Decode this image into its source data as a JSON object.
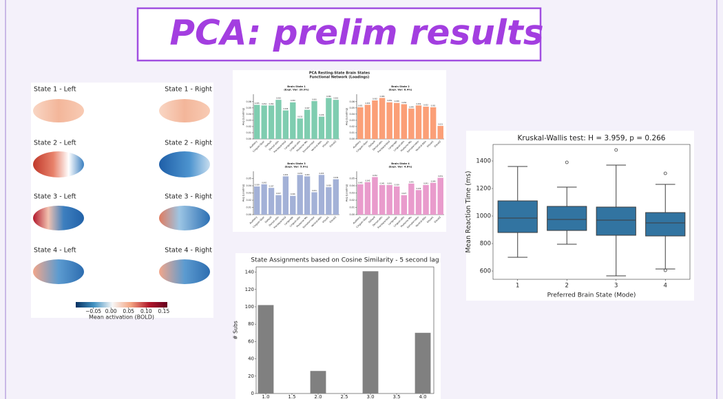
{
  "header": {
    "title": "PCA: prelim results"
  },
  "brain_panel": {
    "labels": [
      "State 1 - Left",
      "State 1 - Right",
      "State 2 - Left",
      "State 2 - Right",
      "State 3 - Left",
      "State 3 - Right",
      "State 4 - Left",
      "State 4 - Right"
    ],
    "colorbar": {
      "label": "Mean activation (BOLD)",
      "lim": [
        -0.1,
        0.16
      ],
      "ticks": [
        {
          "value": -0.05,
          "label": "−0.05"
        },
        {
          "value": 0,
          "label": "0.00"
        },
        {
          "value": 0.05,
          "label": "0.05"
        },
        {
          "value": 0.1,
          "label": "0.10"
        },
        {
          "value": 0.15,
          "label": "0.15"
        }
      ],
      "colors": [
        "#053061",
        "#4393c3",
        "#f7f7f7",
        "#f4a582",
        "#b2182b",
        "#67001f"
      ]
    }
  },
  "pca_title": [
    "PCA Resting-State Brain States",
    "Functional Network (Loadings)"
  ],
  "chart_data": [
    {
      "type": "bar",
      "title": "Brain State 1",
      "subtitle": "(Expl. Var: 20.9%)",
      "ylabel": "Avg |Loading|",
      "color": "#7fcdb0",
      "categories": [
        "Auditory",
        "Cingulo-Oper",
        "Default",
        "Dorsal-attn",
        "Frontoparietal",
        "Language",
        "Lingual-attn",
        "Posterior-Mu",
        "Somatomotor",
        "Ventral-Attn",
        "Visual1",
        "Visual2"
      ],
      "values": [
        0.055,
        0.054,
        0.054,
        0.063,
        0.046,
        0.059,
        0.033,
        0.047,
        0.061,
        0.036,
        0.066,
        0.063
      ],
      "ylim": [
        0,
        0.072
      ],
      "yticks": [
        {
          "value": 0,
          "label": "0.00"
        },
        0.01,
        0.02,
        0.03,
        0.04,
        0.05,
        0.06
      ]
    },
    {
      "type": "bar",
      "title": "Brain State 2",
      "subtitle": "(Expl. Var: 8.4%)",
      "ylabel": "Avg |Loading|",
      "color": "#fb9f77",
      "categories": [
        "Auditory",
        "Cingulo-Oper",
        "Default",
        "Dorsal-attn",
        "Frontoparietal",
        "Language",
        "Lingual-attn",
        "Posterior-Mu",
        "Somatomotor",
        "Ventral-Attn",
        "Visual1",
        "Visual2"
      ],
      "values": [
        0.051,
        0.055,
        0.062,
        0.066,
        0.059,
        0.058,
        0.056,
        0.049,
        0.054,
        0.052,
        0.051,
        0.021
      ],
      "ylim": [
        0,
        0.072
      ],
      "yticks": [
        {
          "value": 0,
          "label": "0.00"
        },
        0.01,
        0.02,
        0.03,
        0.04,
        0.05,
        0.06
      ]
    },
    {
      "type": "bar",
      "title": "Brain State 3",
      "subtitle": "(Expl. Var: 5.0%)",
      "ylabel": "Avg |Loading|",
      "color": "#a3b1d7",
      "categories": [
        "Auditory",
        "Cingulo-Oper",
        "Default",
        "Dorsal-attn",
        "Frontoparietal",
        "Language",
        "Lingual-attn",
        "Posterior-Mu",
        "Somatomotor",
        "Ventral-Attn",
        "Visual1",
        "Visual2"
      ],
      "values": [
        0.039,
        0.042,
        0.037,
        0.027,
        0.053,
        0.026,
        0.055,
        0.053,
        0.031,
        0.055,
        0.038,
        0.049
      ],
      "ylim": [
        0,
        0.06
      ],
      "yticks": [
        {
          "value": 0,
          "label": "0.00"
        },
        0.01,
        0.02,
        0.03,
        0.04,
        0.05
      ]
    },
    {
      "type": "bar",
      "title": "Brain State 4",
      "subtitle": "(Expl. Var: 4.6%)",
      "ylabel": "Avg |Loading|",
      "color": "#e99bcc",
      "categories": [
        "Auditory",
        "Cingulo-Oper",
        "Default",
        "Dorsal-attn",
        "Frontoparietal",
        "Language",
        "Lingual-attn",
        "Posterior-Mu",
        "Somatomotor",
        "Ventral-Attn",
        "Visual1",
        "Visual2"
      ],
      "values": [
        0.042,
        0.045,
        0.052,
        0.041,
        0.041,
        0.039,
        0.027,
        0.043,
        0.034,
        0.041,
        0.044,
        0.051
      ],
      "ylim": [
        0,
        0.06
      ],
      "yticks": [
        {
          "value": 0,
          "label": "0.00"
        },
        0.01,
        0.02,
        0.03,
        0.04,
        0.05
      ]
    },
    {
      "type": "histogram",
      "title": "State Assignments based on Cosine Similarity - 5 second lag",
      "ylabel": "# Subs",
      "color": "#808080",
      "x": [
        1,
        2,
        3,
        4
      ],
      "values": [
        102,
        26,
        141,
        70
      ],
      "xlim": [
        0.816,
        4.21
      ],
      "xticks": [
        {
          "value": 1,
          "label": "1.0"
        },
        1.5,
        {
          "value": 2,
          "label": "2.0"
        },
        2.5,
        {
          "value": 3,
          "label": "3.0"
        },
        3.5,
        {
          "value": 4,
          "label": "4.0"
        }
      ],
      "ylim": [
        0,
        146
      ],
      "yticks": [
        0,
        20,
        40,
        60,
        80,
        100,
        120,
        140
      ]
    },
    {
      "type": "box",
      "title": "Kruskal-Wallis test: H = 3.959, p = 0.266",
      "xlabel": "Preferred Brain State (Mode)",
      "ylabel": "Mean Reaction Time (ms)",
      "color": "#3274a1",
      "categories": [
        "1",
        "2",
        "3",
        "4"
      ],
      "boxes": [
        {
          "whislo": 700,
          "q1": 880,
          "med": 985,
          "q3": 1110,
          "whishi": 1360,
          "fliers": []
        },
        {
          "whislo": 795,
          "q1": 895,
          "med": 975,
          "q3": 1070,
          "whishi": 1210,
          "fliers": [
            1390
          ]
        },
        {
          "whislo": 565,
          "q1": 860,
          "med": 970,
          "q3": 1065,
          "whishi": 1370,
          "fliers": [
            1480
          ]
        },
        {
          "whislo": 615,
          "q1": 855,
          "med": 950,
          "q3": 1025,
          "whishi": 1230,
          "fliers": [
            1310,
            605
          ]
        }
      ],
      "ylim": [
        540,
        1520
      ],
      "yticks": [
        600,
        800,
        1000,
        1200,
        1400
      ]
    }
  ]
}
